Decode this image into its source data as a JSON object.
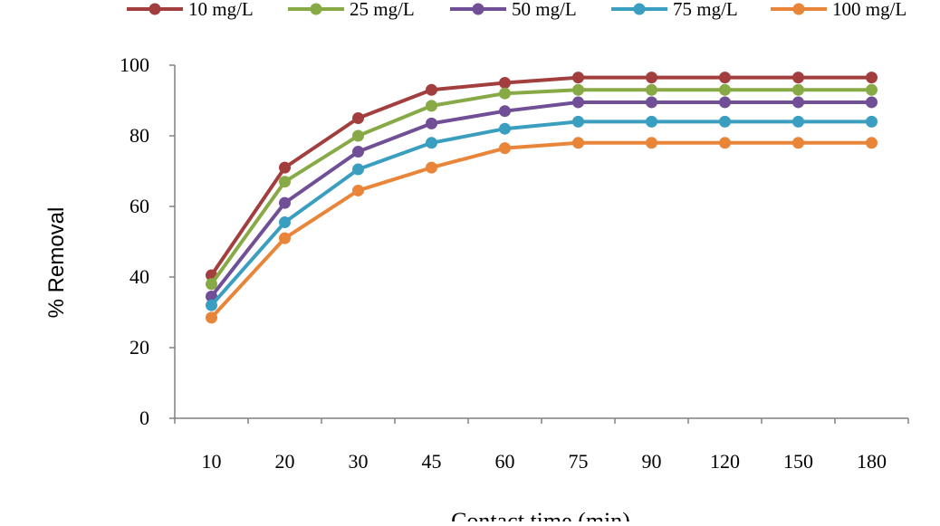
{
  "chart_data": {
    "type": "line",
    "title": "",
    "xlabel": "Contact time (min)",
    "ylabel": "% Removal",
    "categories": [
      "10",
      "20",
      "30",
      "45",
      "60",
      "75",
      "90",
      "120",
      "150",
      "180"
    ],
    "ylim": [
      0,
      100
    ],
    "yticks": [
      "0",
      "20",
      "40",
      "60",
      "80",
      "100"
    ],
    "grid": false,
    "legend": "top",
    "series": [
      {
        "name": "10 mg/L",
        "color": "#a23f3e",
        "values": [
          40.5,
          71,
          85,
          93,
          95,
          96.5,
          96.5,
          96.5,
          96.5,
          96.5
        ]
      },
      {
        "name": "25 mg/L",
        "color": "#88aa46",
        "values": [
          38,
          67,
          80,
          88.5,
          92,
          93,
          93,
          93,
          93,
          93
        ]
      },
      {
        "name": "50 mg/L",
        "color": "#714f96",
        "values": [
          34.5,
          61,
          75.5,
          83.5,
          87,
          89.5,
          89.5,
          89.5,
          89.5,
          89.5
        ]
      },
      {
        "name": "75 mg/L",
        "color": "#3a9ec1",
        "values": [
          32,
          55.5,
          70.5,
          78,
          82,
          84,
          84,
          84,
          84,
          84
        ]
      },
      {
        "name": "100 mg/L",
        "color": "#e98539",
        "values": [
          28.5,
          51,
          64.5,
          71,
          76.5,
          78,
          78,
          78,
          78,
          78
        ]
      }
    ]
  }
}
